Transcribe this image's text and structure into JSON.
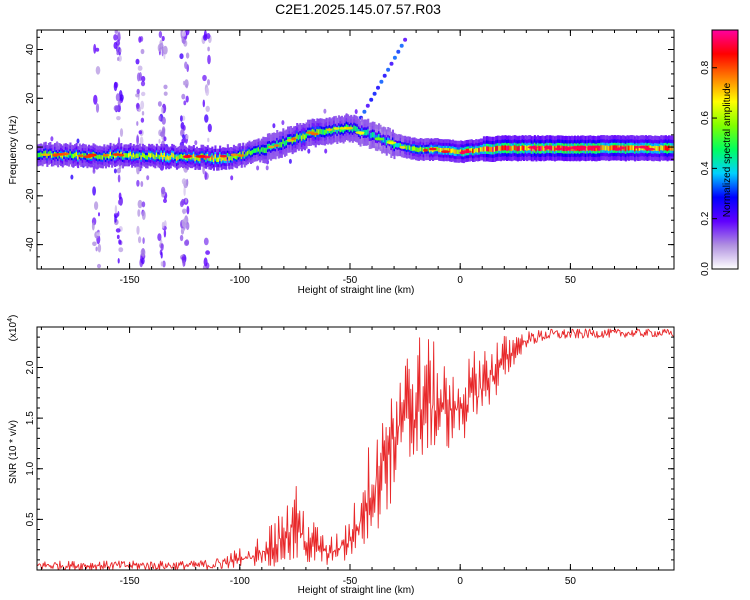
{
  "title": "C2E1.2025.145.07.57.R03",
  "chart_data": [
    {
      "type": "heatmap",
      "name": "spectrogram",
      "xlabel": "Height of straight line (km)",
      "ylabel": "Frequency (Hz)",
      "xlim": [
        -192,
        97
      ],
      "ylim": [
        -50,
        48
      ],
      "xticks": [
        {
          "value": -150,
          "label": "-150"
        },
        {
          "value": -100,
          "label": "-100"
        },
        {
          "value": -50,
          "label": "-50"
        },
        {
          "value": 0,
          "label": "0"
        },
        {
          "value": 50,
          "label": "50"
        }
      ],
      "yticks": [
        {
          "value": -40,
          "label": "-40"
        },
        {
          "value": -20,
          "label": "-20"
        },
        {
          "value": 0,
          "label": "0"
        },
        {
          "value": 20,
          "label": "20"
        },
        {
          "value": 40,
          "label": "40"
        }
      ],
      "ridge": {
        "x": [
          -192,
          -170,
          -150,
          -130,
          -110,
          -100,
          -90,
          -80,
          -70,
          -60,
          -50,
          -45,
          -40,
          -35,
          -30,
          -25,
          -20,
          -10,
          0,
          10,
          20,
          40,
          60,
          80,
          97
        ],
        "freq": [
          -3,
          -3.5,
          -3.5,
          -4,
          -4.5,
          -3.5,
          -1,
          2,
          5,
          7,
          8,
          6,
          5,
          3,
          1,
          0,
          -1,
          -1,
          -2,
          -1,
          -0.5,
          -0.5,
          -0.5,
          -0.5,
          -0.5
        ],
        "amplitude": [
          0.6,
          0.65,
          0.65,
          0.7,
          0.75,
          0.6,
          0.55,
          0.6,
          0.6,
          0.55,
          0.5,
          0.45,
          0.45,
          0.4,
          0.5,
          0.55,
          0.6,
          0.7,
          0.85,
          0.9,
          0.9,
          0.92,
          0.9,
          0.88,
          0.85
        ]
      },
      "scatter_region_km": [
        -165,
        -115
      ],
      "colorbar": {
        "label": "Normalized spectral amplitude",
        "range": [
          0.0,
          0.95
        ],
        "ticks": [
          {
            "value": 0.0,
            "label": "0.0"
          },
          {
            "value": 0.2,
            "label": "0.2"
          },
          {
            "value": 0.4,
            "label": "0.4"
          },
          {
            "value": 0.6,
            "label": "0.6"
          },
          {
            "value": 0.8,
            "label": "0.8"
          }
        ],
        "colormap": [
          "#ffffff",
          "#b090e0",
          "#6000ff",
          "#0000ff",
          "#00d0ff",
          "#00ff60",
          "#80ff00",
          "#ffff00",
          "#ff8000",
          "#ff0000",
          "#ff00a0"
        ]
      }
    },
    {
      "type": "line",
      "name": "snr",
      "color": "#e8282a",
      "xlabel": "Height of straight line (km)",
      "ylabel": "SNR (10 * v/v)",
      "scale_note": "(x10",
      "scale_exp": "4",
      "xlim": [
        -192,
        97
      ],
      "ylim": [
        0,
        24000
      ],
      "xticks": [
        {
          "value": -150,
          "label": "-150"
        },
        {
          "value": -100,
          "label": "-100"
        },
        {
          "value": -50,
          "label": "-50"
        },
        {
          "value": 0,
          "label": "0"
        },
        {
          "value": 50,
          "label": "50"
        }
      ],
      "yticks": [
        {
          "value": 5000,
          "label": "0.5"
        },
        {
          "value": 10000,
          "label": "1.0"
        },
        {
          "value": 15000,
          "label": "1.5"
        },
        {
          "value": 20000,
          "label": "2.0"
        }
      ],
      "envelope": {
        "x": [
          -192,
          -150,
          -120,
          -110,
          -100,
          -90,
          -80,
          -75,
          -70,
          -60,
          -55,
          -50,
          -45,
          -40,
          -35,
          -30,
          -25,
          -20,
          -15,
          -10,
          -5,
          0,
          5,
          10,
          15,
          20,
          25,
          30,
          40,
          60,
          80,
          97
        ],
        "low": [
          0,
          0,
          0,
          0,
          200,
          300,
          400,
          500,
          500,
          500,
          500,
          800,
          1500,
          3000,
          5000,
          7000,
          9000,
          10000,
          11000,
          11500,
          12000,
          12500,
          13500,
          15000,
          16500,
          18500,
          20500,
          22000,
          22700,
          22900,
          23000,
          23000
        ],
        "high": [
          900,
          900,
          900,
          1200,
          2200,
          3500,
          6500,
          8700,
          6000,
          3000,
          4000,
          6000,
          9000,
          14000,
          18000,
          20000,
          22500,
          23400,
          23400,
          22000,
          20000,
          20500,
          21500,
          22500,
          23000,
          23200,
          23400,
          23600,
          23800,
          23800,
          23800,
          23800
        ]
      }
    }
  ]
}
